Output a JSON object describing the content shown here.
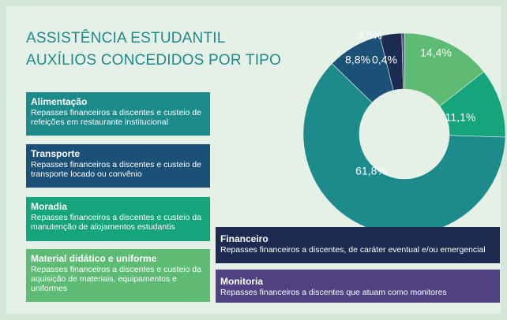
{
  "chart_data": {
    "type": "pie",
    "title": "ASSISTÊNCIA ESTUDANTIL",
    "subtitle": "AUXÍLIOS CONCEDIDOS POR TIPO",
    "categories": [
      "Material didático e uniforme",
      "Moradia",
      "Alimentação",
      "Transporte",
      "Financeiro",
      "Monitoria"
    ],
    "descriptions": [
      "Repasses financeiros a discentes e custeio da aquisição de materiais, equipamentos e uniformes",
      "Repasses financeiros a discentes e custeio da manutenção de alojamentos estudantis",
      "Repasses financeiros a discentes e custeio de refeições em restaurante institucional",
      "Repasses financeiros a discentes e custeio de transporte locado ou convênio",
      "Repasses financeiros a discentes, de caráter eventual e/ou emergencial",
      "Repasses financeiros a discentes que atuam como monitores"
    ],
    "values": [
      14.4,
      11.1,
      61.8,
      8.8,
      3.5,
      0.4
    ],
    "value_labels": [
      "14,4%",
      "11,1%",
      "61,8%",
      "8,8%",
      "3,5%",
      "0,4%"
    ],
    "colors": [
      "#5dbb73",
      "#16a47c",
      "#1d8a8c",
      "#1c5177",
      "#1c2b4f",
      "#4f4182"
    ],
    "donut": true
  }
}
